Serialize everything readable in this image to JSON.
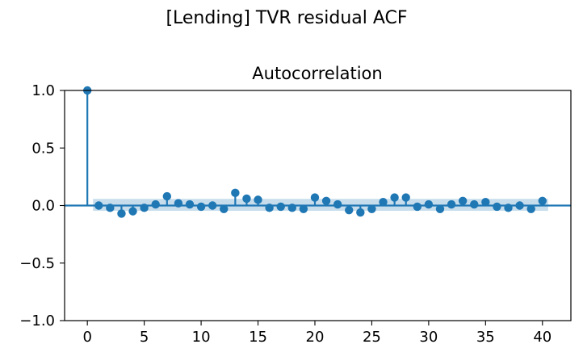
{
  "figure": {
    "suptitle": "[Lending] TVR residual ACF"
  },
  "chart_data": {
    "type": "scatter",
    "subtype": "stem",
    "title": "Autocorrelation",
    "xlabel": "",
    "ylabel": "",
    "xlim": [
      -2,
      42.5
    ],
    "ylim": [
      -1.0,
      1.0
    ],
    "xticks": [
      0,
      5,
      10,
      15,
      20,
      25,
      30,
      35,
      40
    ],
    "xtick_labels": [
      "0",
      "5",
      "10",
      "15",
      "20",
      "25",
      "30",
      "35",
      "40"
    ],
    "yticks": [
      -1.0,
      -0.5,
      0.0,
      0.5,
      1.0
    ],
    "ytick_labels": [
      "−1.0",
      "−0.5",
      "0.0",
      "0.5",
      "1.0"
    ],
    "grid": false,
    "colors": {
      "marker": "#1f77b4",
      "confidence_band": "#1f77b4",
      "zero_line": "#1f77b4"
    },
    "confidence_band": {
      "lower": -0.046,
      "upper": 0.058
    },
    "series": [
      {
        "x": [
          0,
          1,
          2,
          3,
          4,
          5,
          6,
          7,
          8,
          9,
          10,
          11,
          12,
          13,
          14,
          15,
          16,
          17,
          18,
          19,
          20,
          21,
          22,
          23,
          24,
          25,
          26,
          27,
          28,
          29,
          30,
          31,
          32,
          33,
          34,
          35,
          36,
          37,
          38,
          39,
          40
        ],
        "values": [
          1.0,
          0.0,
          -0.02,
          -0.07,
          -0.05,
          -0.02,
          0.01,
          0.08,
          0.02,
          0.01,
          -0.01,
          0.0,
          -0.03,
          0.11,
          0.06,
          0.05,
          -0.02,
          -0.01,
          -0.02,
          -0.03,
          0.07,
          0.04,
          0.01,
          -0.04,
          -0.06,
          -0.03,
          0.03,
          0.07,
          0.07,
          -0.01,
          0.01,
          -0.03,
          0.01,
          0.04,
          0.01,
          0.03,
          -0.01,
          -0.02,
          0.0,
          -0.03,
          0.04
        ]
      }
    ]
  }
}
